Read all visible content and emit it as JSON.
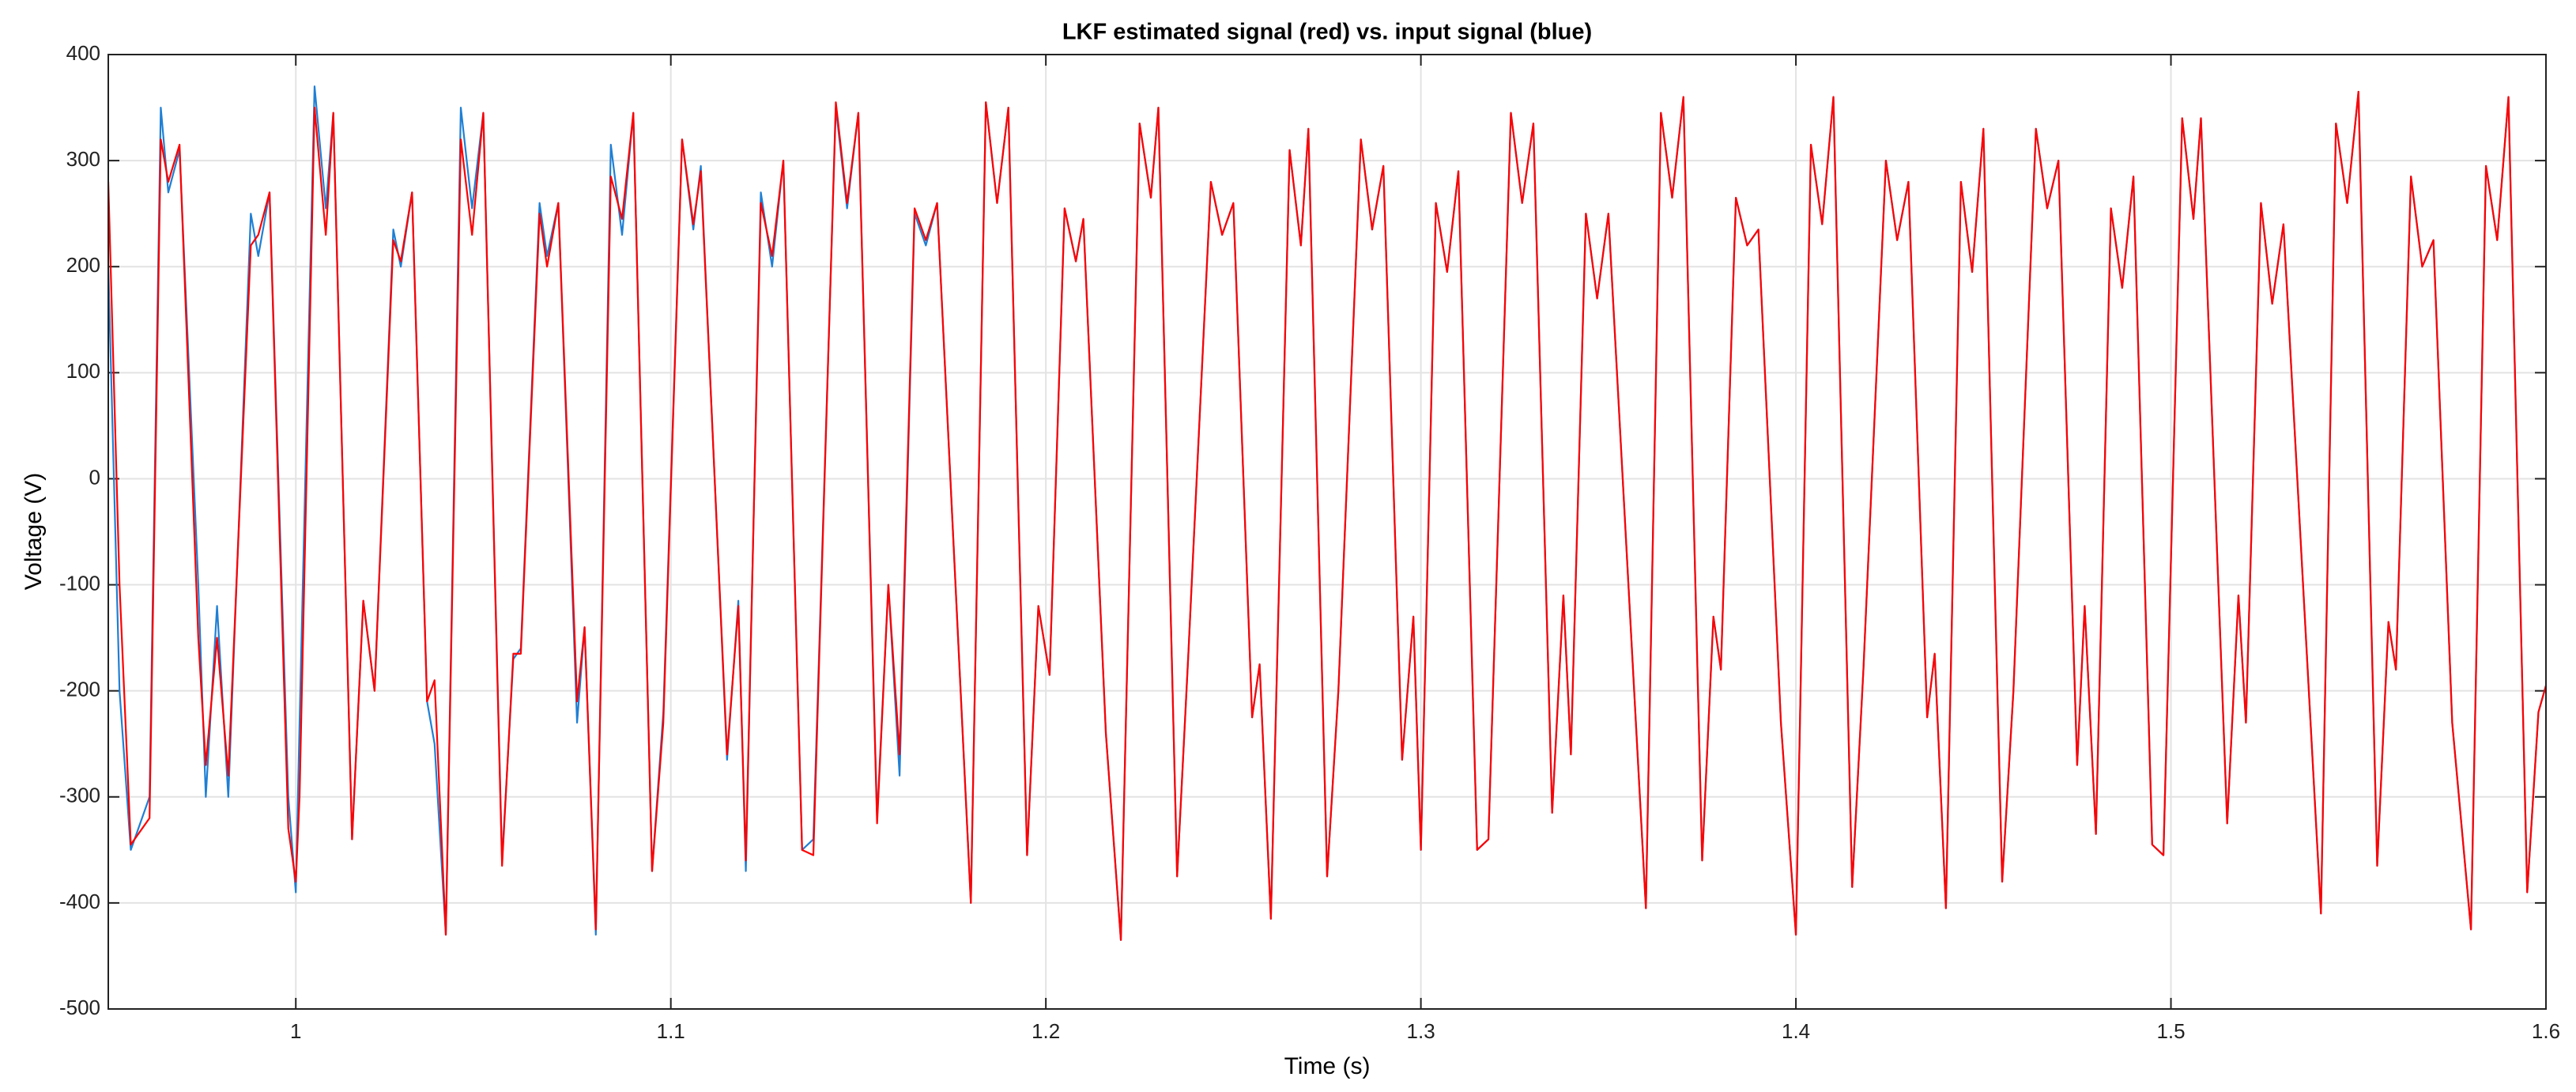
{
  "chart_data": {
    "type": "line",
    "title": "LKF estimated signal (red) vs. input signal (blue)",
    "x_label": "Time (s)",
    "y_label": "Voltage (V)",
    "xlim": [
      0.95,
      1.6
    ],
    "xticks": [
      1,
      1.1,
      1.2,
      1.3,
      1.4,
      1.5,
      1.6
    ],
    "ylim": [
      -500,
      400
    ],
    "yticks": [
      -500,
      -400,
      -300,
      -200,
      -100,
      0,
      100,
      200,
      300,
      400
    ],
    "grid": true,
    "x": [
      0.95,
      0.953,
      0.956,
      0.961,
      0.964,
      0.966,
      0.969,
      0.974,
      0.976,
      0.979,
      0.982,
      0.988,
      0.99,
      0.993,
      0.998,
      1.0,
      1.001,
      1.005,
      1.008,
      1.01,
      1.015,
      1.018,
      1.021,
      1.026,
      1.028,
      1.031,
      1.035,
      1.037,
      1.04,
      1.044,
      1.047,
      1.05,
      1.055,
      1.058,
      1.06,
      1.065,
      1.067,
      1.07,
      1.075,
      1.077,
      1.08,
      1.084,
      1.087,
      1.09,
      1.095,
      1.098,
      1.103,
      1.106,
      1.108,
      1.115,
      1.118,
      1.12,
      1.124,
      1.127,
      1.13,
      1.135,
      1.138,
      1.144,
      1.147,
      1.15,
      1.155,
      1.158,
      1.161,
      1.165,
      1.168,
      1.171,
      1.18,
      1.184,
      1.187,
      1.19,
      1.195,
      1.198,
      1.201,
      1.205,
      1.208,
      1.21,
      1.216,
      1.22,
      1.225,
      1.228,
      1.23,
      1.235,
      1.238,
      1.244,
      1.247,
      1.25,
      1.255,
      1.257,
      1.26,
      1.265,
      1.268,
      1.27,
      1.275,
      1.278,
      1.284,
      1.287,
      1.29,
      1.295,
      1.298,
      1.3,
      1.304,
      1.307,
      1.31,
      1.315,
      1.318,
      1.324,
      1.327,
      1.33,
      1.335,
      1.338,
      1.34,
      1.344,
      1.347,
      1.35,
      1.36,
      1.364,
      1.367,
      1.37,
      1.375,
      1.378,
      1.38,
      1.384,
      1.387,
      1.39,
      1.396,
      1.4,
      1.404,
      1.407,
      1.41,
      1.415,
      1.418,
      1.424,
      1.427,
      1.43,
      1.435,
      1.437,
      1.44,
      1.444,
      1.447,
      1.45,
      1.455,
      1.458,
      1.464,
      1.467,
      1.47,
      1.475,
      1.477,
      1.48,
      1.484,
      1.487,
      1.49,
      1.495,
      1.498,
      1.503,
      1.506,
      1.508,
      1.515,
      1.518,
      1.52,
      1.524,
      1.527,
      1.53,
      1.54,
      1.544,
      1.547,
      1.55,
      1.555,
      1.558,
      1.56,
      1.564,
      1.567,
      1.57,
      1.575,
      1.58,
      1.584,
      1.587,
      1.59,
      1.595,
      1.598,
      1.6
    ],
    "series": [
      {
        "name": "input signal",
        "color": "#1f7fd4",
        "values": [
          200,
          -200,
          -350,
          -300,
          350,
          270,
          310,
          -100,
          -300,
          -120,
          -300,
          250,
          210,
          270,
          -300,
          -390,
          -230,
          370,
          255,
          345,
          -340,
          -115,
          -200,
          235,
          200,
          270,
          -210,
          -250,
          -430,
          350,
          255,
          345,
          -360,
          -170,
          -160,
          260,
          210,
          260,
          -230,
          -140,
          -430,
          315,
          230,
          345,
          -370,
          -220,
          320,
          235,
          295,
          -265,
          -115,
          -370,
          270,
          200,
          300,
          -350,
          -340,
          350,
          255,
          345,
          -320,
          -100,
          -280,
          250,
          220,
          260,
          -400,
          355,
          260,
          350,
          -355,
          -120,
          -185,
          255,
          205,
          245,
          -240,
          -435,
          335,
          265,
          350,
          -375,
          -165,
          280,
          230,
          260,
          -225,
          -175,
          -415,
          310,
          220,
          330,
          -375,
          -200,
          320,
          235,
          295,
          -265,
          -130,
          -350,
          260,
          195,
          290,
          -350,
          -340,
          345,
          260,
          335,
          -315,
          -110,
          -260,
          250,
          170,
          250,
          -405,
          345,
          265,
          360,
          -360,
          -130,
          -180,
          265,
          220,
          235,
          -230,
          -430,
          315,
          240,
          360,
          -385,
          -180,
          300,
          225,
          280,
          -225,
          -165,
          -405,
          280,
          195,
          330,
          -380,
          -200,
          330,
          255,
          300,
          -270,
          -120,
          -335,
          255,
          180,
          285,
          -345,
          -355,
          340,
          245,
          340,
          -325,
          -110,
          -230,
          260,
          165,
          240,
          -410,
          335,
          260,
          365,
          -365,
          -135,
          -180,
          285,
          200,
          225,
          -230,
          -425,
          295,
          225,
          360,
          -390,
          -220,
          -195
        ]
      },
      {
        "name": "LKF estimated signal",
        "color": "#ff0000",
        "values": [
          280,
          -100,
          -345,
          -320,
          320,
          280,
          315,
          -150,
          -270,
          -150,
          -280,
          220,
          230,
          270,
          -330,
          -380,
          -300,
          350,
          230,
          345,
          -340,
          -115,
          -200,
          225,
          205,
          270,
          -210,
          -190,
          -430,
          320,
          230,
          345,
          -365,
          -165,
          -165,
          250,
          200,
          260,
          -210,
          -140,
          -425,
          285,
          245,
          345,
          -370,
          -230,
          320,
          240,
          290,
          -260,
          -120,
          -360,
          260,
          210,
          300,
          -350,
          -355,
          355,
          260,
          345,
          -325,
          -100,
          -260,
          255,
          225,
          260,
          -400,
          355,
          260,
          350,
          -355,
          -120,
          -185,
          255,
          205,
          245,
          -240,
          -435,
          335,
          265,
          350,
          -375,
          -165,
          280,
          230,
          260,
          -225,
          -175,
          -415,
          310,
          220,
          330,
          -375,
          -200,
          320,
          235,
          295,
          -265,
          -130,
          -350,
          260,
          195,
          290,
          -350,
          -340,
          345,
          260,
          335,
          -315,
          -110,
          -260,
          250,
          170,
          250,
          -405,
          345,
          265,
          360,
          -360,
          -130,
          -180,
          265,
          220,
          235,
          -230,
          -430,
          315,
          240,
          360,
          -385,
          -180,
          300,
          225,
          280,
          -225,
          -165,
          -405,
          280,
          195,
          330,
          -380,
          -200,
          330,
          255,
          300,
          -270,
          -120,
          -335,
          255,
          180,
          285,
          -345,
          -355,
          340,
          245,
          340,
          -325,
          -110,
          -230,
          260,
          165,
          240,
          -410,
          335,
          260,
          365,
          -365,
          -135,
          -180,
          285,
          200,
          225,
          -230,
          -425,
          295,
          225,
          360,
          -390,
          -220,
          -195
        ]
      }
    ]
  }
}
